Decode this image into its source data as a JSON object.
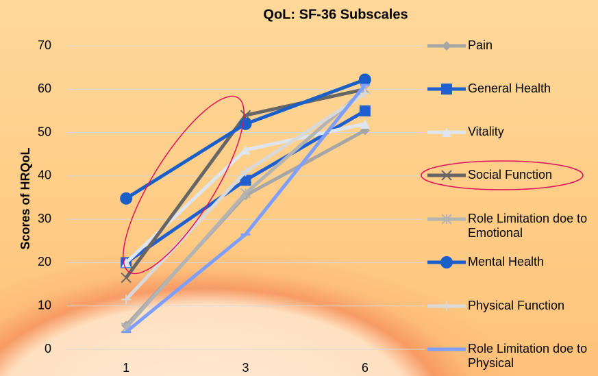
{
  "chart_data": {
    "type": "line",
    "title": "QoL: SF-36 Subscales",
    "y_label": "Scores of HRQoL",
    "categories": [
      "1",
      "3",
      "6"
    ],
    "ylim": [
      0,
      70
    ],
    "yticks": [
      0,
      10,
      20,
      30,
      40,
      50,
      60,
      70
    ],
    "grid": true,
    "series": [
      {
        "name": "Pain",
        "color": "#a6a6a6",
        "marker": "diamond",
        "values": [
          5.5,
          35.5,
          50.5
        ]
      },
      {
        "name": "General Health",
        "color": "#1f5fd0",
        "marker": "square",
        "values": [
          20,
          39,
          55
        ]
      },
      {
        "name": "Vitality",
        "color": "#dde6f0",
        "marker": "triangle",
        "values": [
          20,
          46,
          52
        ]
      },
      {
        "name": "Social Function",
        "color": "#666666",
        "marker": "x",
        "values": [
          16.5,
          54,
          60
        ]
      },
      {
        "name": "Role Limitation doe to Emotional",
        "color": "#b3b3b3",
        "marker": "star",
        "values": [
          5,
          36,
          60
        ]
      },
      {
        "name": "Mental Health",
        "color": "#1a5fc8",
        "marker": "circle",
        "values": [
          34.8,
          52,
          62.2
        ]
      },
      {
        "name": "Physical Function",
        "color": "#d9d9d9",
        "marker": "plus",
        "values": [
          11.5,
          41,
          59
        ]
      },
      {
        "name": "Role Limitation doe to Physical",
        "color": "#7f9fff",
        "marker": "dash",
        "values": [
          4,
          26.5,
          61
        ]
      }
    ]
  }
}
